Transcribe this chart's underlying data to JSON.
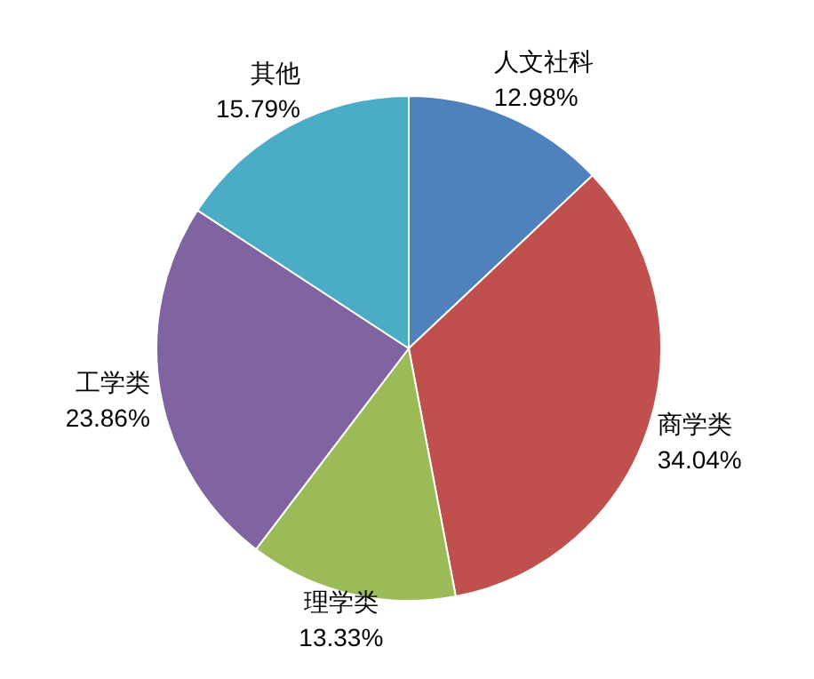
{
  "chart_data": {
    "type": "pie",
    "categories": [
      "人文社科",
      "商学类",
      "理学类",
      "工学类",
      "其他"
    ],
    "values": [
      12.98,
      34.04,
      13.33,
      23.86,
      15.79
    ],
    "value_labels": [
      "12.98%",
      "34.04%",
      "13.33%",
      "23.86%",
      "15.79%"
    ],
    "colors": [
      "#4f81bd",
      "#c0504d",
      "#9bbb59",
      "#8064a2",
      "#4bacc6"
    ]
  }
}
